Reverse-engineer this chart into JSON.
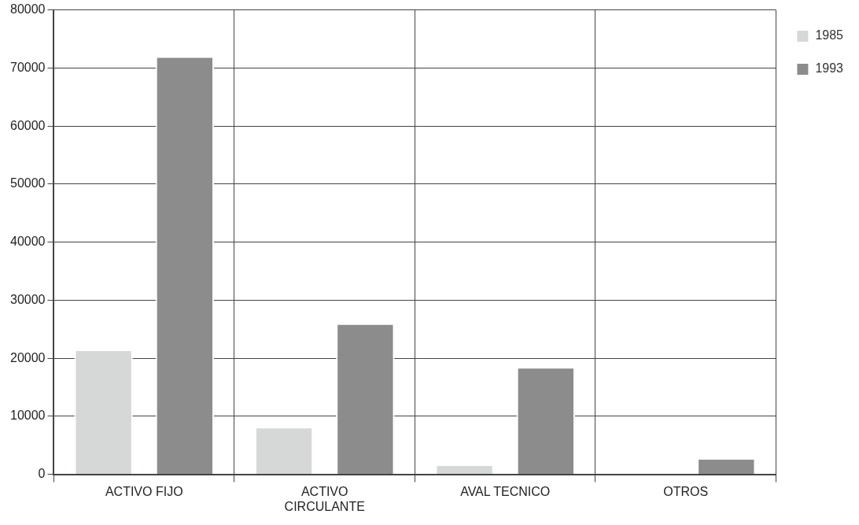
{
  "chart_data": {
    "type": "bar",
    "categories": [
      "ACTIVO FIJO",
      "ACTIVO CIRCULANTE",
      "AVAL TECNICO",
      "OTROS"
    ],
    "series": [
      {
        "name": "1985",
        "color": "#d6d8d8",
        "values": [
          21500,
          8200,
          1700,
          null
        ]
      },
      {
        "name": "1993",
        "color": "#8c8c8c",
        "values": [
          72000,
          26000,
          18500,
          2800
        ]
      }
    ],
    "ylim": [
      0,
      80000
    ],
    "yticks": [
      0,
      10000,
      20000,
      30000,
      40000,
      50000,
      60000,
      70000,
      80000
    ],
    "grid": true,
    "legend": "top right"
  }
}
